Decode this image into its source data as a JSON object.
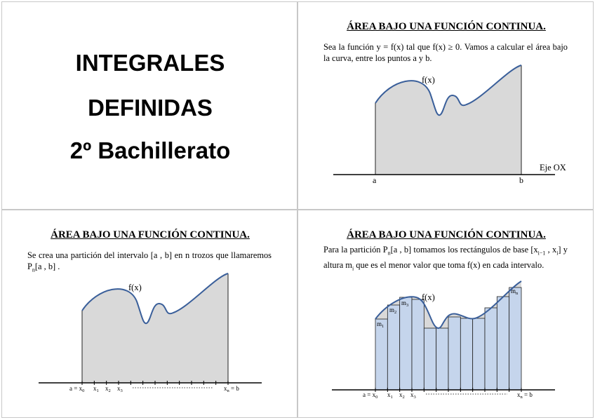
{
  "slide1": {
    "line1": "INTEGRALES",
    "line2": "DEFINIDAS",
    "line3": "2º Bachillerato"
  },
  "slide2": {
    "title": "ÁREA BAJO UNA FUNCIÓN CONTINUA.",
    "text": "Sea la función y = f(x) tal que f(x) ≥ 0. Vamos a calcular el área bajo la curva, entre los puntos a y b.",
    "curve_label": "f(x)",
    "axis_label": "Eje OX",
    "point_a": "a",
    "point_b": "b"
  },
  "slide3": {
    "title": "ÁREA BAJO UNA FUNCIÓN CONTINUA.",
    "text_before": "Se crea una partición del intervalo [a , b] en n trozos que llamaremos P",
    "text_sub": "n",
    "text_after": "[a , b] .",
    "curve_label": "f(x)",
    "tick_labels": [
      {
        "text": "a = x",
        "sub": "0"
      },
      {
        "text": "x",
        "sub": "1"
      },
      {
        "text": "x",
        "sub": "2"
      },
      {
        "text": "x",
        "sub": "3"
      },
      {
        "text": "x",
        "sub": "n",
        "suffix": " = b"
      }
    ]
  },
  "slide4": {
    "title": "ÁREA BAJO UNA FUNCIÓN CONTINUA.",
    "text_parts": [
      {
        "t": "Para la partición P"
      },
      {
        "sub": "n"
      },
      {
        "t": "[a , b] tomamos los rectángulos de base [x"
      },
      {
        "sub": "i−1"
      },
      {
        "t": " , x"
      },
      {
        "sub": "i"
      },
      {
        "t": "] y altura m"
      },
      {
        "sub": "i"
      },
      {
        "t": " que es el menor valor que toma f(x) en cada intervalo."
      }
    ],
    "curve_label": "f(x)",
    "rect_labels": [
      {
        "text": "m",
        "sub": "1"
      },
      {
        "text": "m",
        "sub": "2"
      },
      {
        "text": "m",
        "sub": "3"
      },
      {
        "text": "m",
        "sub": "n"
      }
    ],
    "tick_labels": [
      {
        "text": "a = x",
        "sub": "0"
      },
      {
        "text": "x",
        "sub": "1"
      },
      {
        "text": "x",
        "sub": "2"
      },
      {
        "text": "x",
        "sub": "3"
      },
      {
        "text": "x",
        "sub": "n",
        "suffix": " = b"
      }
    ]
  },
  "colors": {
    "curve": "#3a5f9a",
    "area_fill": "#d9d9d9",
    "rect_fill": "#c5d5ec",
    "axis": "#000000"
  }
}
